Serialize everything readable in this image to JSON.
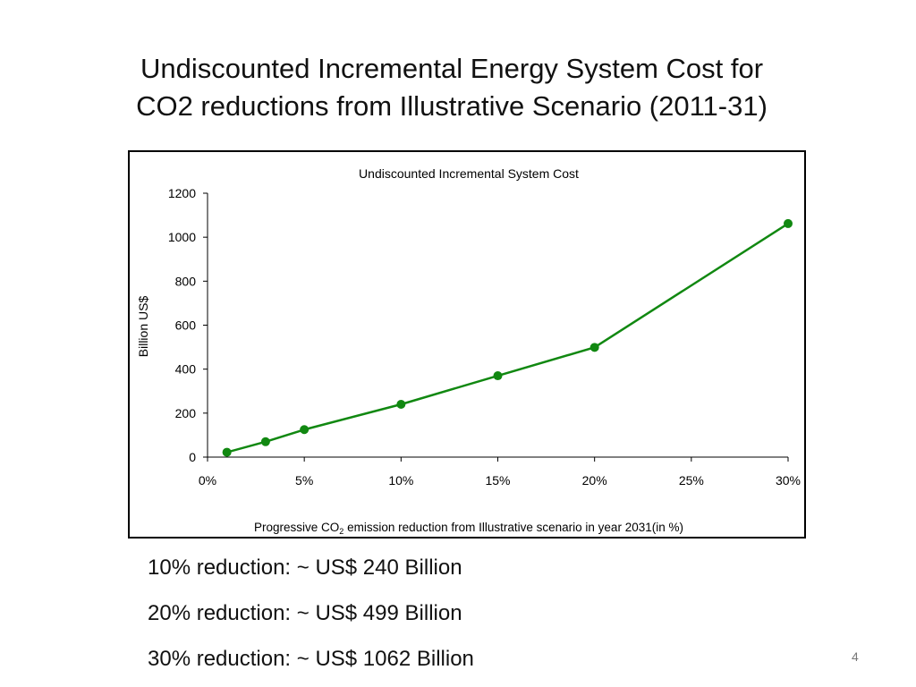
{
  "slide": {
    "title_line1": "Undiscounted Incremental Energy System Cost for",
    "title_line2": "CO2 reductions from Illustrative Scenario (2011-31)",
    "bullets": [
      "10% reduction: ~ US$ 240 Billion",
      "20% reduction: ~ US$ 499 Billion",
      "30% reduction: ~ US$ 1062 Billion"
    ],
    "page_number": "4"
  },
  "chart_data": {
    "type": "line",
    "title": "Undiscounted Incremental System Cost",
    "xlabel_prefix": "Progressive CO",
    "xlabel_subscript": "2",
    "xlabel_suffix": " emission reduction from Illustrative scenario in year 2031(in %)",
    "ylabel": "Billion US$",
    "xlim": [
      0,
      30
    ],
    "ylim": [
      0,
      1200
    ],
    "x_ticks": [
      0,
      5,
      10,
      15,
      20,
      25,
      30
    ],
    "x_tick_labels": [
      "0%",
      "5%",
      "10%",
      "15%",
      "20%",
      "25%",
      "30%"
    ],
    "y_ticks": [
      0,
      200,
      400,
      600,
      800,
      1000,
      1200
    ],
    "y_tick_labels": [
      "0",
      "200",
      "400",
      "600",
      "800",
      "1000",
      "1200"
    ],
    "line_color": "#118811",
    "series": [
      {
        "x": [
          1,
          3,
          5,
          10,
          15,
          20,
          30
        ],
        "y": [
          22,
          70,
          125,
          240,
          370,
          499,
          1062
        ]
      }
    ]
  }
}
